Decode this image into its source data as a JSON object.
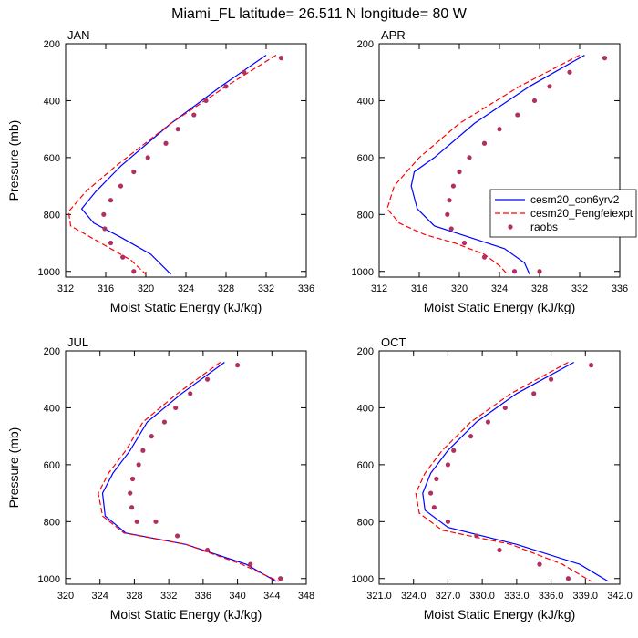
{
  "figure": {
    "title": "Miami_FL  latitude= 26.511 N longitude= 80 W"
  },
  "legend": {
    "placement": "right of APR panel",
    "entries": [
      "cesm20_con6yrv2",
      "cesm20_Pengfeiexpt",
      "raobs"
    ]
  },
  "chart_data": [
    {
      "type": "line",
      "panel": "JAN",
      "title": "JAN",
      "xlabel": "Moist Static Energy (kJ/kg)",
      "ylabel": "Pressure (mb)",
      "xlim": [
        312,
        336
      ],
      "ylim": [
        1020,
        200
      ],
      "y_reversed": true,
      "xticks": [
        "312",
        "316",
        "320",
        "324",
        "328",
        "332",
        "336"
      ],
      "yticks": [
        "200",
        "400",
        "600",
        "800",
        "1000"
      ],
      "series": [
        {
          "name": "cesm20_con6yrv2",
          "style": "solid",
          "color": "#0000ff",
          "x": [
            332.0,
            327.5,
            322.5,
            317.5,
            315.0,
            313.6,
            314.8,
            317.5,
            320.5,
            322.5
          ],
          "y": [
            240,
            350,
            480,
            630,
            720,
            780,
            830,
            880,
            940,
            1010
          ]
        },
        {
          "name": "cesm20_Pengfeiexpt",
          "style": "dashed",
          "color": "#ff0000",
          "x": [
            333.0,
            328.0,
            322.5,
            317.0,
            314.0,
            312.3,
            312.5,
            314.5,
            316.5,
            318.5,
            320.0
          ],
          "y": [
            240,
            350,
            480,
            630,
            720,
            790,
            840,
            880,
            920,
            960,
            1010
          ]
        },
        {
          "name": "raobs",
          "style": "marker",
          "color": "#b03060",
          "x": [
            333.5,
            329.8,
            328.0,
            326.0,
            324.8,
            323.2,
            322.0,
            320.2,
            318.8,
            317.5,
            316.5,
            315.8,
            315.9,
            316.5,
            317.7,
            318.8
          ],
          "y": [
            250,
            300,
            350,
            400,
            450,
            500,
            550,
            600,
            650,
            700,
            750,
            800,
            850,
            900,
            950,
            1000
          ]
        }
      ]
    },
    {
      "type": "line",
      "panel": "APR",
      "title": "APR",
      "xlabel": "Moist Static Energy (kJ/kg)",
      "ylabel": "",
      "xlim": [
        312,
        336
      ],
      "ylim": [
        1020,
        200
      ],
      "y_reversed": true,
      "xticks": [
        "312",
        "316",
        "320",
        "324",
        "328",
        "332",
        "336"
      ],
      "yticks": [
        "200",
        "400",
        "600",
        "800",
        "1000"
      ],
      "series": [
        {
          "name": "cesm20_con6yrv2",
          "style": "solid",
          "color": "#0000ff",
          "x": [
            332.5,
            327.0,
            321.5,
            317.5,
            315.5,
            315.2,
            315.8,
            317.5,
            321.0,
            324.5,
            326.5,
            327.0
          ],
          "y": [
            240,
            350,
            480,
            600,
            650,
            700,
            780,
            840,
            880,
            920,
            970,
            1010
          ]
        },
        {
          "name": "cesm20_Pengfeiexpt",
          "style": "dashed",
          "color": "#ff0000",
          "x": [
            332.0,
            326.0,
            320.0,
            316.0,
            313.5,
            312.8,
            314.0,
            316.5,
            319.5,
            322.5,
            324.0,
            324.8
          ],
          "y": [
            240,
            350,
            480,
            600,
            700,
            780,
            830,
            870,
            900,
            940,
            980,
            1010
          ]
        },
        {
          "name": "raobs",
          "style": "marker",
          "color": "#b03060",
          "x": [
            334.5,
            331.0,
            329.0,
            327.5,
            325.8,
            324.0,
            322.5,
            321.0,
            320.0,
            319.4,
            319.0,
            318.8,
            319.2,
            320.5,
            322.5,
            325.5,
            328.0
          ],
          "y": [
            250,
            300,
            350,
            400,
            450,
            500,
            550,
            600,
            650,
            700,
            750,
            800,
            850,
            900,
            950,
            1000,
            1000
          ]
        }
      ]
    },
    {
      "type": "line",
      "panel": "JUL",
      "title": "JUL",
      "xlabel": "Moist Static Energy (kJ/kg)",
      "ylabel": "Pressure (mb)",
      "xlim": [
        320,
        348
      ],
      "ylim": [
        1020,
        200
      ],
      "y_reversed": true,
      "xticks": [
        "320",
        "324",
        "328",
        "332",
        "336",
        "340",
        "344",
        "348"
      ],
      "yticks": [
        "200",
        "400",
        "600",
        "800",
        "1000"
      ],
      "series": [
        {
          "name": "cesm20_con6yrv2",
          "style": "solid",
          "color": "#0000ff",
          "x": [
            338.5,
            333.5,
            329.5,
            327.5,
            325.5,
            324.3,
            324.6,
            327.0,
            334.0,
            341.0,
            344.5
          ],
          "y": [
            240,
            350,
            450,
            550,
            630,
            700,
            780,
            840,
            880,
            950,
            1010
          ]
        },
        {
          "name": "cesm20_Pengfeiexpt",
          "style": "dashed",
          "color": "#ff0000",
          "x": [
            338.0,
            333.0,
            329.0,
            327.0,
            325.0,
            323.8,
            324.3,
            326.8,
            334.0,
            340.5,
            344.8
          ],
          "y": [
            240,
            350,
            450,
            550,
            630,
            700,
            780,
            840,
            880,
            950,
            1010
          ]
        },
        {
          "name": "raobs",
          "style": "marker",
          "color": "#b03060",
          "x": [
            340.0,
            336.5,
            334.5,
            332.8,
            331.5,
            330.0,
            329.0,
            328.5,
            327.8,
            327.5,
            327.7,
            328.3,
            330.5,
            333.0,
            336.5,
            341.5,
            345.0
          ],
          "y": [
            250,
            300,
            350,
            400,
            450,
            500,
            550,
            600,
            650,
            700,
            750,
            800,
            800,
            850,
            900,
            950,
            1000
          ]
        }
      ]
    },
    {
      "type": "line",
      "panel": "OCT",
      "title": "OCT",
      "xlabel": "Moist Static Energy (kJ/kg)",
      "ylabel": "",
      "xlim": [
        321.0,
        342.0
      ],
      "ylim": [
        1020,
        200
      ],
      "y_reversed": true,
      "xticks": [
        "321.0",
        "324.0",
        "327.0",
        "330.0",
        "333.0",
        "336.0",
        "339.0",
        "342.0"
      ],
      "yticks": [
        "200",
        "400",
        "600",
        "800",
        "1000"
      ],
      "series": [
        {
          "name": "cesm20_con6yrv2",
          "style": "solid",
          "color": "#0000ff",
          "x": [
            338.0,
            333.0,
            329.5,
            327.0,
            325.5,
            324.8,
            325.0,
            327.0,
            333.0,
            338.5,
            341.0
          ],
          "y": [
            240,
            350,
            450,
            550,
            630,
            700,
            760,
            820,
            880,
            950,
            1010
          ]
        },
        {
          "name": "cesm20_Pengfeiexpt",
          "style": "dashed",
          "color": "#ff0000",
          "x": [
            337.5,
            332.5,
            329.0,
            326.5,
            325.0,
            324.2,
            324.5,
            326.5,
            332.5,
            337.0,
            339.5
          ],
          "y": [
            240,
            350,
            450,
            550,
            630,
            700,
            770,
            830,
            880,
            950,
            1010
          ]
        },
        {
          "name": "raobs",
          "style": "marker",
          "color": "#b03060",
          "x": [
            339.5,
            336.0,
            334.5,
            332.0,
            330.5,
            329.0,
            327.5,
            327.0,
            326.0,
            325.5,
            325.8,
            327.0,
            329.5,
            331.5,
            335.0,
            337.5
          ],
          "y": [
            250,
            300,
            350,
            400,
            450,
            500,
            550,
            600,
            650,
            700,
            750,
            800,
            850,
            900,
            950,
            1000
          ]
        }
      ]
    }
  ]
}
